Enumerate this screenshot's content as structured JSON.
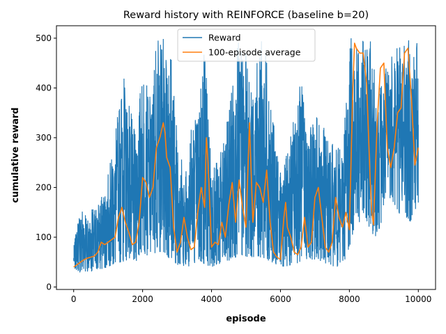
{
  "chart_data": {
    "type": "line",
    "title": "Reward history with REINFORCE (baseline b=20)",
    "xlabel": "episode",
    "ylabel": "cumulative reward",
    "xlim": [
      -500,
      10500
    ],
    "ylim": [
      -5,
      525
    ],
    "xticks": [
      0,
      2000,
      4000,
      6000,
      8000,
      10000
    ],
    "yticks": [
      0,
      100,
      200,
      300,
      400,
      500
    ],
    "grid": false,
    "legend_position": "upper center",
    "series": [
      {
        "name": "Reward",
        "color": "#1f77b4",
        "description_points_x": [
          0,
          200,
          400,
          600,
          800,
          1000,
          1200,
          1400,
          1600,
          1800,
          2000,
          2200,
          2400,
          2600,
          2800,
          3000,
          3200,
          3400,
          3600,
          3800,
          4000,
          4200,
          4400,
          4600,
          4800,
          5000,
          5200,
          5400,
          5600,
          5800,
          6000,
          6200,
          6400,
          6600,
          6800,
          7000,
          7200,
          7400,
          7600,
          7800,
          8000,
          8200,
          8400,
          8600,
          8800,
          9000,
          9200,
          9400,
          9600,
          9800,
          10000
        ],
        "min": [
          38,
          28,
          30,
          32,
          35,
          40,
          45,
          50,
          55,
          50,
          70,
          60,
          70,
          70,
          55,
          45,
          40,
          42,
          50,
          45,
          40,
          45,
          50,
          55,
          60,
          60,
          60,
          60,
          55,
          48,
          40,
          42,
          45,
          50,
          55,
          55,
          50,
          45,
          40,
          42,
          80,
          130,
          120,
          110,
          100,
          140,
          180,
          150,
          140,
          130,
          160
        ],
        "max": [
          80,
          170,
          150,
          160,
          180,
          230,
          300,
          440,
          380,
          300,
          450,
          380,
          500,
          500,
          500,
          320,
          230,
          330,
          360,
          500,
          240,
          260,
          300,
          430,
          500,
          470,
          380,
          500,
          480,
          330,
          230,
          270,
          350,
          430,
          310,
          350,
          330,
          300,
          280,
          280,
          500,
          500,
          500,
          500,
          400,
          420,
          500,
          500,
          500,
          500,
          500
        ]
      },
      {
        "name": "100-episode average",
        "color": "#ff7f0e",
        "x": [
          0,
          100,
          200,
          300,
          400,
          500,
          600,
          700,
          800,
          900,
          1000,
          1100,
          1200,
          1300,
          1400,
          1500,
          1600,
          1700,
          1800,
          1900,
          2000,
          2100,
          2200,
          2300,
          2400,
          2500,
          2600,
          2650,
          2700,
          2800,
          2900,
          3000,
          3100,
          3200,
          3300,
          3400,
          3500,
          3600,
          3700,
          3800,
          3850,
          3900,
          4000,
          4100,
          4200,
          4300,
          4400,
          4500,
          4600,
          4700,
          4800,
          4900,
          5000,
          5100,
          5200,
          5300,
          5400,
          5500,
          5600,
          5700,
          5800,
          5900,
          6000,
          6100,
          6150,
          6200,
          6300,
          6400,
          6500,
          6600,
          6700,
          6800,
          6900,
          7000,
          7100,
          7200,
          7300,
          7400,
          7500,
          7600,
          7700,
          7800,
          7900,
          8000,
          8100,
          8150,
          8200,
          8300,
          8400,
          8500,
          8600,
          8650,
          8700,
          8800,
          8900,
          9000,
          9100,
          9200,
          9300,
          9400,
          9500,
          9600,
          9700,
          9800,
          9900,
          10000
        ],
        "y": [
          40,
          45,
          50,
          55,
          58,
          60,
          62,
          70,
          90,
          85,
          90,
          95,
          100,
          140,
          160,
          130,
          110,
          85,
          90,
          130,
          220,
          210,
          180,
          200,
          280,
          300,
          330,
          310,
          260,
          240,
          120,
          70,
          90,
          140,
          100,
          75,
          80,
          150,
          200,
          160,
          300,
          250,
          80,
          90,
          85,
          130,
          100,
          165,
          210,
          130,
          215,
          160,
          120,
          330,
          130,
          210,
          200,
          170,
          235,
          130,
          70,
          60,
          55,
          140,
          170,
          120,
          100,
          70,
          65,
          80,
          140,
          80,
          90,
          180,
          200,
          140,
          80,
          70,
          90,
          180,
          140,
          120,
          150,
          115,
          400,
          490,
          480,
          470,
          470,
          410,
          220,
          150,
          125,
          320,
          440,
          450,
          280,
          240,
          280,
          350,
          360,
          470,
          480,
          380,
          245,
          280
        ]
      }
    ]
  }
}
